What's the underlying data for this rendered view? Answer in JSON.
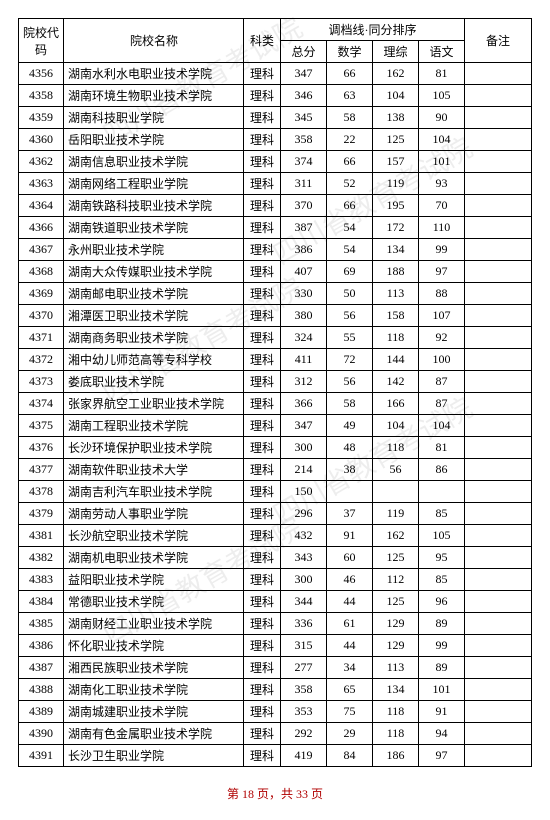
{
  "header": {
    "code": "院校代码",
    "name": "院校名称",
    "type": "科类",
    "score_group": "调档线·同分排序",
    "total": "总分",
    "math": "数学",
    "comp": "理综",
    "chinese": "语文",
    "remark": "备注"
  },
  "rows": [
    {
      "code": "4356",
      "name": "湖南水利水电职业技术学院",
      "type": "理科",
      "total": "347",
      "math": "66",
      "comp": "162",
      "chinese": "81",
      "remark": ""
    },
    {
      "code": "4358",
      "name": "湖南环境生物职业技术学院",
      "type": "理科",
      "total": "346",
      "math": "63",
      "comp": "104",
      "chinese": "105",
      "remark": ""
    },
    {
      "code": "4359",
      "name": "湖南科技职业学院",
      "type": "理科",
      "total": "345",
      "math": "58",
      "comp": "138",
      "chinese": "90",
      "remark": ""
    },
    {
      "code": "4360",
      "name": "岳阳职业技术学院",
      "type": "理科",
      "total": "358",
      "math": "22",
      "comp": "125",
      "chinese": "104",
      "remark": ""
    },
    {
      "code": "4362",
      "name": "湖南信息职业技术学院",
      "type": "理科",
      "total": "374",
      "math": "66",
      "comp": "157",
      "chinese": "101",
      "remark": ""
    },
    {
      "code": "4363",
      "name": "湖南网络工程职业学院",
      "type": "理科",
      "total": "311",
      "math": "52",
      "comp": "119",
      "chinese": "93",
      "remark": ""
    },
    {
      "code": "4364",
      "name": "湖南铁路科技职业技术学院",
      "type": "理科",
      "total": "370",
      "math": "66",
      "comp": "195",
      "chinese": "70",
      "remark": ""
    },
    {
      "code": "4366",
      "name": "湖南铁道职业技术学院",
      "type": "理科",
      "total": "387",
      "math": "54",
      "comp": "172",
      "chinese": "110",
      "remark": ""
    },
    {
      "code": "4367",
      "name": "永州职业技术学院",
      "type": "理科",
      "total": "386",
      "math": "54",
      "comp": "134",
      "chinese": "99",
      "remark": ""
    },
    {
      "code": "4368",
      "name": "湖南大众传媒职业技术学院",
      "type": "理科",
      "total": "407",
      "math": "69",
      "comp": "188",
      "chinese": "97",
      "remark": ""
    },
    {
      "code": "4369",
      "name": "湖南邮电职业技术学院",
      "type": "理科",
      "total": "330",
      "math": "50",
      "comp": "113",
      "chinese": "88",
      "remark": ""
    },
    {
      "code": "4370",
      "name": "湘潭医卫职业技术学院",
      "type": "理科",
      "total": "380",
      "math": "56",
      "comp": "158",
      "chinese": "107",
      "remark": ""
    },
    {
      "code": "4371",
      "name": "湖南商务职业技术学院",
      "type": "理科",
      "total": "324",
      "math": "55",
      "comp": "118",
      "chinese": "92",
      "remark": ""
    },
    {
      "code": "4372",
      "name": "湘中幼儿师范高等专科学校",
      "type": "理科",
      "total": "411",
      "math": "72",
      "comp": "144",
      "chinese": "100",
      "remark": ""
    },
    {
      "code": "4373",
      "name": "娄底职业技术学院",
      "type": "理科",
      "total": "312",
      "math": "56",
      "comp": "142",
      "chinese": "87",
      "remark": ""
    },
    {
      "code": "4374",
      "name": "张家界航空工业职业技术学院",
      "type": "理科",
      "total": "366",
      "math": "58",
      "comp": "166",
      "chinese": "87",
      "remark": ""
    },
    {
      "code": "4375",
      "name": "湖南工程职业技术学院",
      "type": "理科",
      "total": "347",
      "math": "49",
      "comp": "104",
      "chinese": "104",
      "remark": ""
    },
    {
      "code": "4376",
      "name": "长沙环境保护职业技术学院",
      "type": "理科",
      "total": "300",
      "math": "48",
      "comp": "118",
      "chinese": "81",
      "remark": ""
    },
    {
      "code": "4377",
      "name": "湖南软件职业技术大学",
      "type": "理科",
      "total": "214",
      "math": "38",
      "comp": "56",
      "chinese": "86",
      "remark": ""
    },
    {
      "code": "4378",
      "name": "湖南吉利汽车职业技术学院",
      "type": "理科",
      "total": "150",
      "math": "",
      "comp": "",
      "chinese": "",
      "remark": ""
    },
    {
      "code": "4379",
      "name": "湖南劳动人事职业学院",
      "type": "理科",
      "total": "296",
      "math": "37",
      "comp": "119",
      "chinese": "85",
      "remark": ""
    },
    {
      "code": "4381",
      "name": "长沙航空职业技术学院",
      "type": "理科",
      "total": "432",
      "math": "91",
      "comp": "162",
      "chinese": "105",
      "remark": ""
    },
    {
      "code": "4382",
      "name": "湖南机电职业技术学院",
      "type": "理科",
      "total": "343",
      "math": "60",
      "comp": "125",
      "chinese": "95",
      "remark": ""
    },
    {
      "code": "4383",
      "name": "益阳职业技术学院",
      "type": "理科",
      "total": "300",
      "math": "46",
      "comp": "112",
      "chinese": "85",
      "remark": ""
    },
    {
      "code": "4384",
      "name": "常德职业技术学院",
      "type": "理科",
      "total": "344",
      "math": "44",
      "comp": "125",
      "chinese": "96",
      "remark": ""
    },
    {
      "code": "4385",
      "name": "湖南财经工业职业技术学院",
      "type": "理科",
      "total": "336",
      "math": "61",
      "comp": "129",
      "chinese": "89",
      "remark": ""
    },
    {
      "code": "4386",
      "name": "怀化职业技术学院",
      "type": "理科",
      "total": "315",
      "math": "44",
      "comp": "129",
      "chinese": "99",
      "remark": ""
    },
    {
      "code": "4387",
      "name": "湘西民族职业技术学院",
      "type": "理科",
      "total": "277",
      "math": "34",
      "comp": "113",
      "chinese": "89",
      "remark": ""
    },
    {
      "code": "4388",
      "name": "湖南化工职业技术学院",
      "type": "理科",
      "total": "358",
      "math": "65",
      "comp": "134",
      "chinese": "101",
      "remark": ""
    },
    {
      "code": "4389",
      "name": "湖南城建职业技术学院",
      "type": "理科",
      "total": "353",
      "math": "75",
      "comp": "118",
      "chinese": "91",
      "remark": ""
    },
    {
      "code": "4390",
      "name": "湖南有色金属职业技术学院",
      "type": "理科",
      "total": "292",
      "math": "29",
      "comp": "118",
      "chinese": "94",
      "remark": ""
    },
    {
      "code": "4391",
      "name": "长沙卫生职业学院",
      "type": "理科",
      "total": "419",
      "math": "84",
      "comp": "186",
      "chinese": "97",
      "remark": ""
    }
  ],
  "footer": {
    "text": "第 18 页，共 33 页"
  },
  "watermark": {
    "text": "四川省教育考试院"
  }
}
